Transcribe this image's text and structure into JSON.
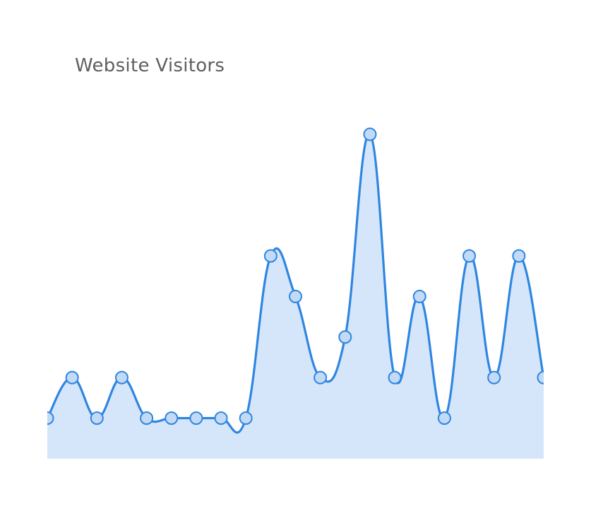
{
  "chart_data": {
    "type": "area",
    "title": "Website Visitors",
    "xlabel": "",
    "ylabel": "",
    "x": [
      1,
      2,
      3,
      4,
      5,
      6,
      7,
      8,
      9,
      10,
      11,
      12,
      13,
      14,
      15,
      16,
      17,
      18,
      19,
      20,
      21
    ],
    "series": [
      {
        "values": [
          1,
          2,
          1,
          2,
          1,
          1,
          1,
          1,
          1,
          5,
          4,
          2,
          3,
          8,
          2,
          4,
          1,
          5,
          2,
          5,
          2
        ]
      }
    ],
    "ylim": [
      0,
      8
    ],
    "grid": false,
    "legend": "none",
    "colors": {
      "line": "#2f86e0",
      "fill": "#d6e6fa",
      "marker_fill": "#c2daf6",
      "title": "#5f5f5f"
    }
  }
}
